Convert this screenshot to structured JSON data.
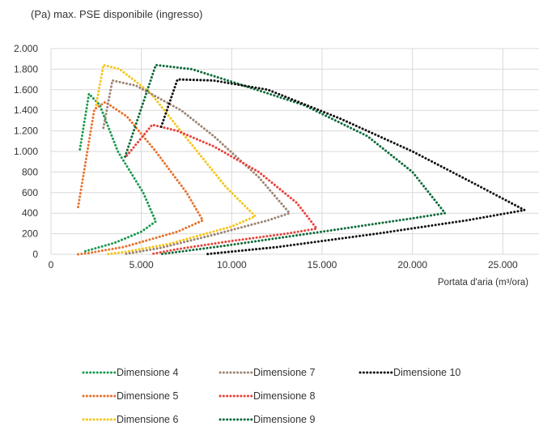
{
  "title": "(Pa) max. PSE disponibile (ingresso)",
  "chart_data": {
    "type": "line",
    "title": "(Pa) max. PSE disponibile (ingresso)",
    "xlabel": "Portata d'aria (m³/ora)",
    "ylabel": "(Pa) max. PSE disponibile (ingresso)",
    "xlim": [
      0,
      27000
    ],
    "ylim": [
      0,
      2000
    ],
    "x_ticks": [
      0,
      5000,
      10000,
      15000,
      20000,
      25000
    ],
    "x_tick_labels": [
      "0",
      "5.000",
      "10.000",
      "15.000",
      "20.000",
      "25.000"
    ],
    "y_ticks": [
      0,
      200,
      400,
      600,
      800,
      1000,
      1200,
      1400,
      1600,
      1800,
      2000
    ],
    "y_tick_labels": [
      "0",
      "200",
      "400",
      "600",
      "800",
      "1.000",
      "1.200",
      "1.400",
      "1.600",
      "1.800",
      "2.000"
    ],
    "grid": true,
    "legend_position": "bottom",
    "series": [
      {
        "name": "Dimensione 4",
        "color": "#1a9a50",
        "points": [
          [
            1600,
            1020
          ],
          [
            2100,
            1560
          ],
          [
            2700,
            1450
          ],
          [
            3700,
            1000
          ],
          [
            5100,
            600
          ],
          [
            5800,
            320
          ],
          [
            5000,
            220
          ],
          [
            3500,
            110
          ],
          [
            2100,
            40
          ],
          [
            1900,
            30
          ]
        ]
      },
      {
        "name": "Dimensione 5",
        "color": "#e8702a",
        "points": [
          [
            1500,
            460
          ],
          [
            2400,
            1410
          ],
          [
            3000,
            1480
          ],
          [
            4200,
            1340
          ],
          [
            5800,
            1000
          ],
          [
            7500,
            600
          ],
          [
            8400,
            330
          ],
          [
            7000,
            220
          ],
          [
            4000,
            70
          ],
          [
            2000,
            10
          ],
          [
            1500,
            0
          ]
        ]
      },
      {
        "name": "Dimensione 6",
        "color": "#f5c518",
        "points": [
          [
            2500,
            1450
          ],
          [
            2900,
            1840
          ],
          [
            3800,
            1800
          ],
          [
            5500,
            1570
          ],
          [
            7400,
            1150
          ],
          [
            9700,
            650
          ],
          [
            11300,
            370
          ],
          [
            10000,
            270
          ],
          [
            6500,
            100
          ],
          [
            4000,
            20
          ],
          [
            3000,
            0
          ]
        ]
      },
      {
        "name": "Dimensione 7",
        "color": "#9c8472",
        "points": [
          [
            2900,
            1230
          ],
          [
            3400,
            1690
          ],
          [
            4700,
            1640
          ],
          [
            7200,
            1400
          ],
          [
            9000,
            1150
          ],
          [
            11500,
            750
          ],
          [
            13200,
            400
          ],
          [
            12000,
            330
          ],
          [
            9000,
            190
          ],
          [
            6000,
            60
          ],
          [
            4000,
            0
          ]
        ]
      },
      {
        "name": "Dimensione 8",
        "color": "#e8433a",
        "points": [
          [
            4200,
            960
          ],
          [
            5600,
            1260
          ],
          [
            7000,
            1200
          ],
          [
            9000,
            1050
          ],
          [
            11500,
            800
          ],
          [
            13600,
            500
          ],
          [
            14700,
            250
          ],
          [
            13000,
            200
          ],
          [
            10000,
            130
          ],
          [
            7000,
            50
          ],
          [
            5500,
            0
          ]
        ]
      },
      {
        "name": "Dimensione 9",
        "color": "#0e6b3a",
        "points": [
          [
            4100,
            950
          ],
          [
            5800,
            1840
          ],
          [
            7800,
            1800
          ],
          [
            10500,
            1650
          ],
          [
            14000,
            1450
          ],
          [
            17500,
            1150
          ],
          [
            20000,
            800
          ],
          [
            21800,
            400
          ],
          [
            20000,
            350
          ],
          [
            15000,
            220
          ],
          [
            9500,
            80
          ],
          [
            6000,
            0
          ]
        ]
      },
      {
        "name": "Dimensione 10",
        "color": "#111111",
        "points": [
          [
            6100,
            1240
          ],
          [
            7000,
            1700
          ],
          [
            9000,
            1690
          ],
          [
            12000,
            1600
          ],
          [
            16000,
            1320
          ],
          [
            20000,
            1000
          ],
          [
            23500,
            680
          ],
          [
            26200,
            430
          ],
          [
            23000,
            330
          ],
          [
            18000,
            200
          ],
          [
            12500,
            70
          ],
          [
            8500,
            0
          ]
        ]
      }
    ]
  }
}
